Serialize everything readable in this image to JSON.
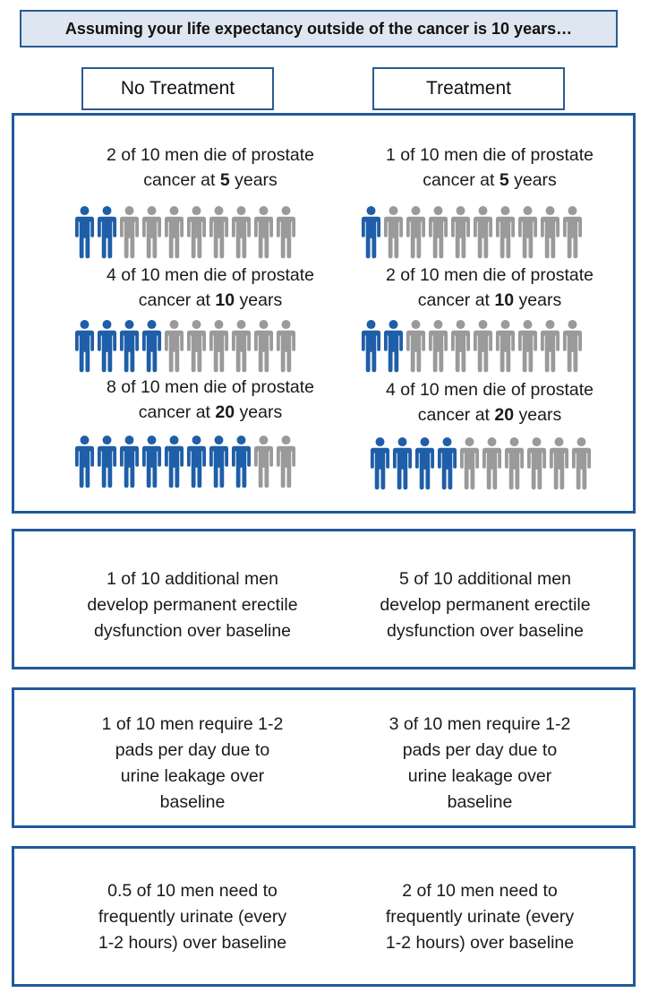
{
  "header": {
    "banner": "Assuming your life expectancy outside of the cancer is 10 years…",
    "no_treatment": "No Treatment",
    "treatment": "Treatment"
  },
  "mortality": {
    "no_treatment": [
      {
        "line1": "2 of 10 men die of prostate",
        "prefix": "cancer at ",
        "years": "5",
        "suffix": " years",
        "died": 2,
        "total": 10
      },
      {
        "line1": "4 of 10 men die of prostate",
        "prefix": "cancer at ",
        "years": "10",
        "suffix": " years",
        "died": 4,
        "total": 10
      },
      {
        "line1": "8 of 10 men die of prostate",
        "prefix": "cancer at ",
        "years": "20",
        "suffix": " years",
        "died": 8,
        "total": 10
      }
    ],
    "treatment": [
      {
        "line1": "1 of 10 men die of prostate",
        "prefix": "cancer at ",
        "years": "5",
        "suffix": " years",
        "died": 1,
        "total": 10
      },
      {
        "line1": "2 of 10 men die of prostate",
        "prefix": "cancer at ",
        "years": "10",
        "suffix": " years",
        "died": 2,
        "total": 10
      },
      {
        "line1": "4 of 10 men die of prostate",
        "prefix": "cancer at ",
        "years": "20",
        "suffix": " years",
        "died": 4,
        "total": 10
      }
    ]
  },
  "erectile": {
    "no_treatment": [
      "1 of 10 additional men",
      "develop permanent erectile",
      "dysfunction over baseline"
    ],
    "treatment": [
      "5 of 10 additional men",
      "develop permanent erectile",
      "dysfunction over baseline"
    ]
  },
  "incontinence": {
    "no_treatment": [
      "1 of 10 men require 1-2",
      "pads per day due to",
      "urine leakage over",
      "baseline"
    ],
    "treatment": [
      "3 of 10 men require 1-2",
      "pads per day due to",
      "urine leakage over",
      "baseline"
    ]
  },
  "urination": {
    "no_treatment": [
      "0.5 of 10 men need to",
      "frequently urinate (every",
      "1-2 hours) over baseline"
    ],
    "treatment": [
      "2 of 10 men need to",
      "frequently urinate (every",
      "1-2 hours) over baseline"
    ]
  },
  "colors": {
    "died": "#1f5ea8",
    "survived": "#9a9a9a",
    "border": "#1f5a9c"
  },
  "icons": {
    "person": "person-icon"
  }
}
